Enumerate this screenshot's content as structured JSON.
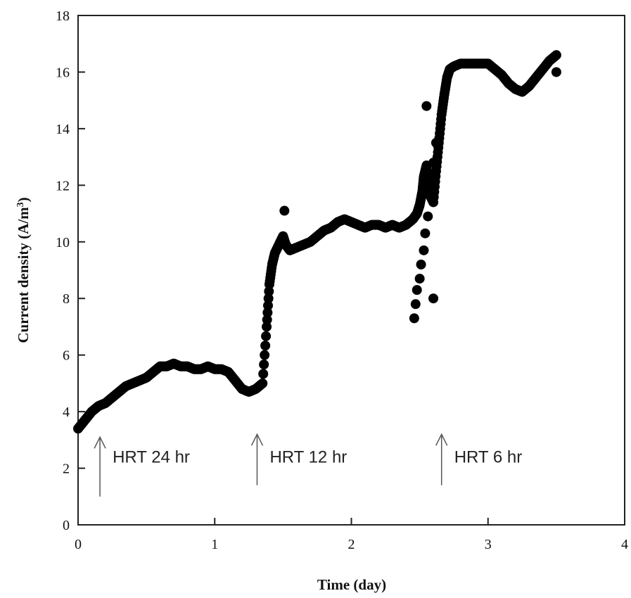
{
  "chart_data": {
    "type": "scatter",
    "title": "",
    "xlabel": "Time (day)",
    "ylabel": "Current density (A/m",
    "ylabel_superscript": "3",
    "ylabel_close": ")",
    "xlim": [
      0,
      4
    ],
    "ylim": [
      0,
      18
    ],
    "xticks": [
      0,
      1,
      2,
      3,
      4
    ],
    "yticks": [
      0,
      2,
      4,
      6,
      8,
      10,
      12,
      14,
      16,
      18
    ],
    "grid": false,
    "legend": "none",
    "marker_color": "#000000",
    "series": [
      {
        "x": [
          0.0,
          0.05,
          0.1,
          0.15,
          0.2,
          0.25,
          0.3,
          0.35,
          0.4,
          0.45,
          0.5,
          0.55,
          0.6,
          0.65,
          0.7,
          0.75,
          0.8,
          0.85,
          0.9,
          0.95,
          1.0,
          1.05,
          1.1,
          1.15,
          1.2,
          1.25,
          1.3,
          1.35,
          1.38,
          1.4,
          1.42,
          1.44,
          1.46,
          1.48,
          1.5,
          1.52,
          1.55,
          1.6,
          1.65,
          1.7,
          1.75,
          1.8,
          1.85,
          1.9,
          1.95,
          2.0,
          2.05,
          2.1,
          2.15,
          2.2,
          2.25,
          2.3,
          2.35,
          2.4,
          2.45,
          2.48,
          2.5,
          2.52,
          2.53,
          2.55,
          2.56,
          2.58,
          2.6,
          2.62,
          2.64,
          2.66,
          2.68,
          2.7,
          2.72,
          2.75,
          2.8,
          2.85,
          2.9,
          2.95,
          3.0,
          3.05,
          3.1,
          3.15,
          3.2,
          3.25,
          3.3,
          3.35,
          3.4,
          3.45,
          3.5
        ],
        "y": [
          3.4,
          3.7,
          4.0,
          4.2,
          4.3,
          4.5,
          4.7,
          4.9,
          5.0,
          5.1,
          5.2,
          5.4,
          5.6,
          5.6,
          5.7,
          5.6,
          5.6,
          5.5,
          5.5,
          5.6,
          5.5,
          5.5,
          5.4,
          5.1,
          4.8,
          4.7,
          4.8,
          5.0,
          7.0,
          8.5,
          9.2,
          9.6,
          9.8,
          10.0,
          10.2,
          9.9,
          9.7,
          9.8,
          9.9,
          10.0,
          10.2,
          10.4,
          10.5,
          10.7,
          10.8,
          10.7,
          10.6,
          10.5,
          10.6,
          10.6,
          10.5,
          10.6,
          10.5,
          10.6,
          10.8,
          11.0,
          11.3,
          11.8,
          12.3,
          12.7,
          12.0,
          11.6,
          11.4,
          12.5,
          13.5,
          14.5,
          15.2,
          15.8,
          16.1,
          16.2,
          16.3,
          16.3,
          16.3,
          16.3,
          16.3,
          16.1,
          15.9,
          15.6,
          15.4,
          15.3,
          15.5,
          15.8,
          16.1,
          16.4,
          16.6
        ],
        "outliers_x": [
          1.51,
          2.46,
          2.47,
          2.48,
          2.5,
          2.51,
          2.53,
          2.54,
          2.56,
          2.58,
          2.6,
          2.62,
          2.55,
          2.6,
          3.5
        ],
        "outliers_y": [
          11.1,
          7.3,
          7.8,
          8.3,
          8.7,
          9.2,
          9.7,
          10.3,
          10.9,
          11.8,
          12.8,
          13.5,
          14.8,
          8.0,
          16.0
        ]
      }
    ],
    "annotations": [
      {
        "text": "HRT 24 hr",
        "x": 0.16,
        "y_from": 1.0,
        "y_to": 3.1
      },
      {
        "text": "HRT 12 hr",
        "x": 1.31,
        "y_from": 1.4,
        "y_to": 3.2
      },
      {
        "text": "HRT 6 hr",
        "x": 2.66,
        "y_from": 1.4,
        "y_to": 3.2
      }
    ]
  }
}
